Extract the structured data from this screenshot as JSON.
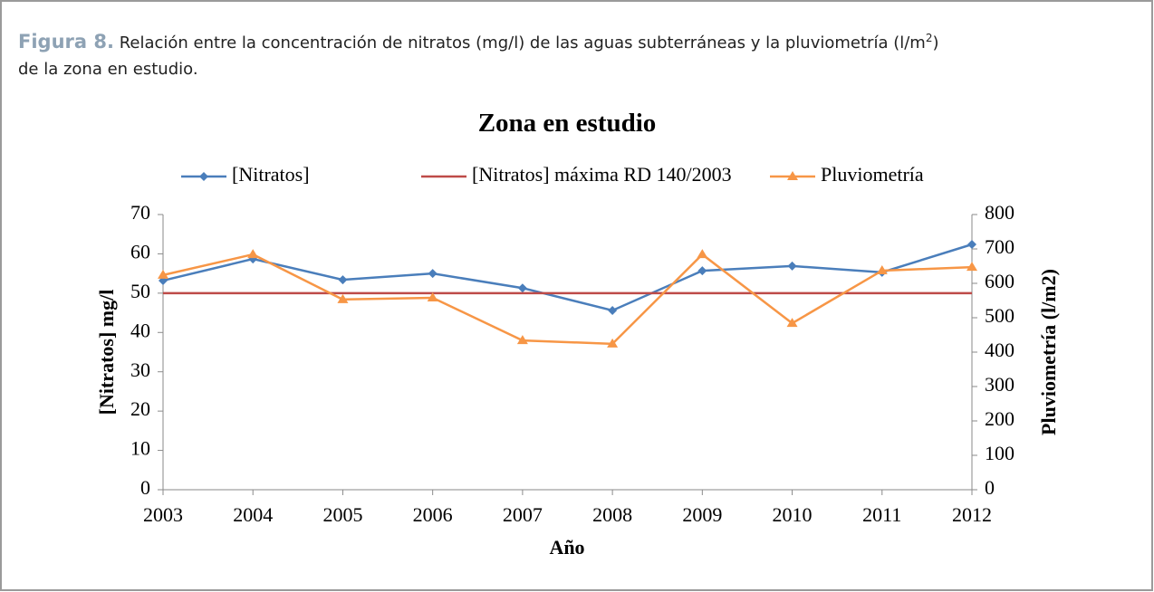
{
  "caption": {
    "label": "Figura 8.",
    "text_before_sup": " Relación entre la concentración de nitratos (mg/l) de las aguas subterráneas y la pluviometría (l/m",
    "superscript": "2",
    "text_after_sup": ")",
    "line2": "de la zona en estudio."
  },
  "chart_data": {
    "type": "line",
    "title": "Zona en estudio",
    "x_label": "Año",
    "y_label": "[Nitratos] mg/l",
    "y2_label": "Pluviometría (l/m2)",
    "categories": [
      "2003",
      "2004",
      "2005",
      "2006",
      "2007",
      "2008",
      "2009",
      "2010",
      "2011",
      "2012"
    ],
    "series": [
      {
        "name": "[Nitratos]",
        "color": "#4a7ebb",
        "marker": "diamond",
        "values": [
          53.2,
          58.7,
          53.4,
          55.0,
          51.3,
          45.6,
          55.7,
          56.9,
          55.3,
          62.4
        ]
      },
      {
        "name": "[Nitratos] máxima RD 140/2003",
        "color": "#be4b48",
        "marker": "none",
        "values": [
          50,
          50,
          50,
          50,
          50,
          50,
          50,
          50,
          50,
          50
        ]
      },
      {
        "name": "Pluviometría",
        "color": "#f79646",
        "marker": "triangle",
        "axis": "y2",
        "values": [
          624,
          684,
          553,
          558,
          434,
          424,
          684,
          484,
          637,
          647
        ]
      }
    ],
    "ylim": [
      0,
      70
    ],
    "yticks": [
      0,
      10,
      20,
      30,
      40,
      50,
      60,
      70
    ],
    "y2lim": [
      0,
      800
    ],
    "y2ticks": [
      0,
      100,
      200,
      300,
      400,
      500,
      600,
      700,
      800
    ],
    "grid": false,
    "legend": "top"
  }
}
